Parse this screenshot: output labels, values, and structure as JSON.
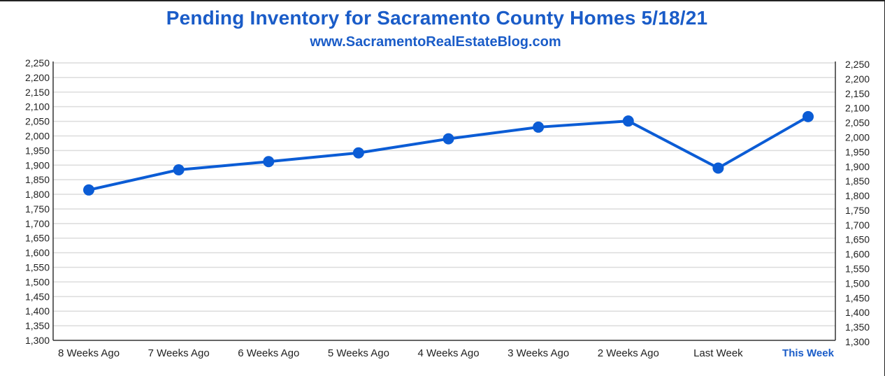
{
  "chart_data": {
    "type": "line",
    "title": "Pending Inventory for Sacramento County Homes 5/18/21",
    "subtitle": "www.SacramentoRealEstateBlog.com",
    "categories": [
      "8 Weeks Ago",
      "7 Weeks Ago",
      "6 Weeks Ago",
      "5 Weeks Ago",
      "4 Weeks Ago",
      "3 Weeks Ago",
      "2 Weeks Ago",
      "Last Week",
      "This Week"
    ],
    "highlight_category": "This Week",
    "series": [
      {
        "name": "Pending Inventory",
        "values": [
          1815,
          1884,
          1912,
          1942,
          1990,
          2030,
          2051,
          1890,
          2066
        ]
      }
    ],
    "ylim": [
      1300,
      2250
    ],
    "y_ticks": [
      1300,
      1350,
      1400,
      1450,
      1500,
      1550,
      1600,
      1650,
      1700,
      1750,
      1800,
      1850,
      1900,
      1950,
      2000,
      2050,
      2100,
      2150,
      2200,
      2250
    ],
    "y_tick_labels": [
      "1,300",
      "1,350",
      "1,400",
      "1,450",
      "1,500",
      "1,550",
      "1,600",
      "1,650",
      "1,700",
      "1,750",
      "1,800",
      "1,850",
      "1,900",
      "1,950",
      "2,000",
      "2,050",
      "2,100",
      "2,150",
      "2,200",
      "2,250"
    ],
    "xlabel": "",
    "ylabel": "",
    "grid": true,
    "secondary_y_axis": true
  },
  "colors": {
    "line": "#0b5cd5",
    "title": "#1a5cc8",
    "grid": "#dcdcdc",
    "axis": "#333333"
  }
}
